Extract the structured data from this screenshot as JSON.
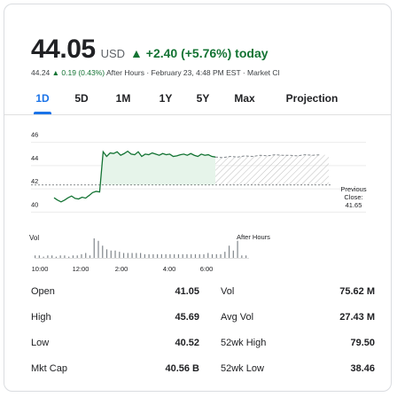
{
  "quote": {
    "price": "44.05",
    "currency": "USD",
    "change": "▲ +2.40 (+5.76%) today",
    "after_hours_price": "44.24",
    "after_hours_change": "▲ 0.19 (0.43%)",
    "after_hours_text": "After Hours · February 23, 4:48 PM EST · Market Cl"
  },
  "tabs": [
    {
      "label": "1D",
      "active": true
    },
    {
      "label": "5D"
    },
    {
      "label": "1M"
    },
    {
      "label": "1Y"
    },
    {
      "label": "5Y"
    },
    {
      "label": "Max"
    },
    {
      "label": "Projection"
    }
  ],
  "chart_data": {
    "type": "line",
    "y_ticks": [
      "46",
      "44",
      "42",
      "40"
    ],
    "ylim": [
      39.5,
      46.5
    ],
    "x_ticks": [
      "10:00",
      "12:00",
      "2:00",
      "4:00",
      "6:00"
    ],
    "previous_close_label": [
      "Previous",
      "Close:",
      "41.65"
    ],
    "previous_close": 41.65,
    "after_hours_label": "After Hours",
    "volume_label": "Vol",
    "colors": {
      "line": "#137333",
      "fill": "#e6f4ea",
      "hatch": "#bdbdbd"
    },
    "series": [
      {
        "values": [
          40.55,
          40.35,
          40.2,
          40.35,
          40.55,
          40.7,
          40.5,
          40.45,
          40.6,
          40.52,
          40.75,
          41.0,
          41.1,
          41.05,
          44.5,
          44.1,
          44.4,
          44.35,
          44.5,
          44.2,
          44.35,
          44.55,
          44.3,
          44.25,
          44.5,
          44.1,
          44.3,
          44.25,
          44.4,
          44.3,
          44.2,
          44.35,
          44.25,
          44.3,
          44.1,
          44.15,
          44.25,
          44.3,
          44.2,
          44.35,
          44.2,
          44.1,
          44.3,
          44.2,
          44.25,
          44.1,
          44.05
        ]
      },
      {
        "values": [
          44.05,
          44.0,
          44.1,
          44.05,
          44.15,
          44.1,
          44.2,
          44.15,
          44.25,
          44.2,
          44.2,
          44.15,
          44.25,
          44.2,
          44.24
        ]
      }
    ],
    "volume_bars": [
      2,
      2,
      1,
      2,
      2,
      1,
      2,
      2,
      1,
      2,
      2,
      3,
      4,
      2,
      16,
      14,
      10,
      7,
      6,
      6,
      5,
      4,
      4,
      4,
      4,
      4,
      3,
      3,
      3,
      3,
      3,
      3,
      3,
      3,
      3,
      3,
      3,
      3,
      3,
      3,
      3,
      4,
      3,
      3,
      3,
      5,
      10,
      6,
      14,
      2,
      2
    ]
  },
  "stats": [
    {
      "label1": "Open",
      "value1": "41.05",
      "label2": "Vol",
      "value2": "75.62 M"
    },
    {
      "label1": "High",
      "value1": "45.69",
      "label2": "Avg Vol",
      "value2": "27.43 M"
    },
    {
      "label1": "Low",
      "value1": "40.52",
      "label2": "52wk High",
      "value2": "79.50"
    },
    {
      "label1": "Mkt Cap",
      "value1": "40.56 B",
      "label2": "52wk Low",
      "value2": "38.46"
    }
  ]
}
